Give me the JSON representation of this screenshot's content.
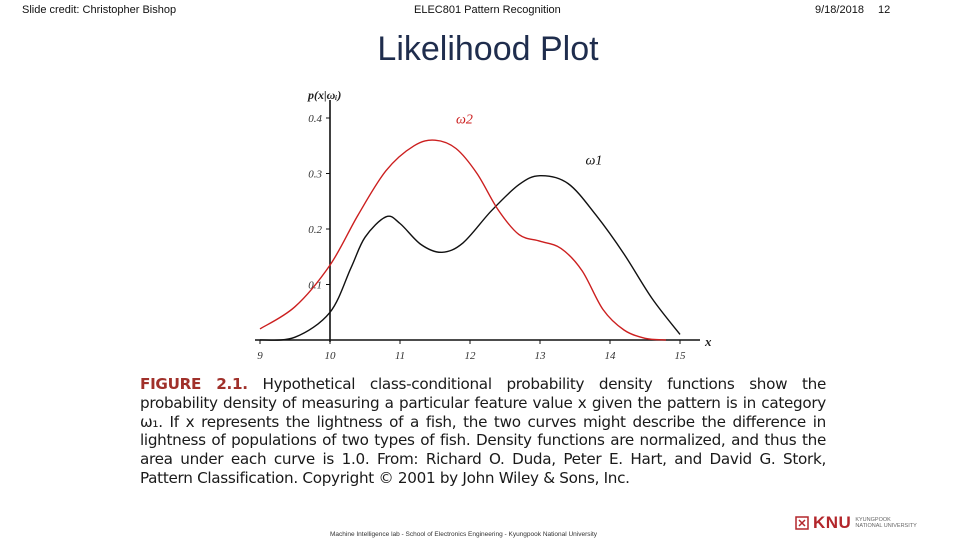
{
  "header": {
    "credit": "Slide credit: Christopher Bishop",
    "course": "ELEC801 Pattern Recognition",
    "date": "9/18/2018",
    "page": "12"
  },
  "title": "Likelihood Plot",
  "chart_data": {
    "type": "line",
    "ylabel": "p(x|ωᵢ)",
    "xlabel": "x",
    "xlim": [
      9,
      15
    ],
    "ylim": [
      0,
      0.4
    ],
    "x_ticks": [
      "9",
      "10",
      "11",
      "12",
      "13",
      "14",
      "15"
    ],
    "y_ticks": [
      "0.1",
      "0.2",
      "0.3",
      "0.4"
    ],
    "series": [
      {
        "name": "ω1",
        "color": "#111111",
        "points": [
          [
            9.0,
            0.0
          ],
          [
            9.5,
            0.005
          ],
          [
            10.0,
            0.05
          ],
          [
            10.3,
            0.13
          ],
          [
            10.5,
            0.185
          ],
          [
            10.8,
            0.222
          ],
          [
            11.0,
            0.21
          ],
          [
            11.3,
            0.172
          ],
          [
            11.6,
            0.158
          ],
          [
            11.9,
            0.175
          ],
          [
            12.3,
            0.232
          ],
          [
            12.7,
            0.28
          ],
          [
            13.0,
            0.296
          ],
          [
            13.4,
            0.282
          ],
          [
            13.8,
            0.225
          ],
          [
            14.2,
            0.155
          ],
          [
            14.6,
            0.075
          ],
          [
            15.0,
            0.01
          ]
        ]
      },
      {
        "name": "ω2",
        "color": "#cc1f1f",
        "points": [
          [
            9.0,
            0.02
          ],
          [
            9.5,
            0.06
          ],
          [
            10.0,
            0.135
          ],
          [
            10.4,
            0.225
          ],
          [
            10.8,
            0.305
          ],
          [
            11.2,
            0.35
          ],
          [
            11.5,
            0.36
          ],
          [
            11.8,
            0.345
          ],
          [
            12.1,
            0.3
          ],
          [
            12.4,
            0.235
          ],
          [
            12.7,
            0.19
          ],
          [
            13.0,
            0.178
          ],
          [
            13.3,
            0.165
          ],
          [
            13.6,
            0.125
          ],
          [
            13.9,
            0.055
          ],
          [
            14.2,
            0.018
          ],
          [
            14.5,
            0.003
          ],
          [
            14.8,
            0.0
          ]
        ]
      }
    ]
  },
  "caption": {
    "label": "FIGURE 2.1.",
    "text": " Hypothetical class-conditional probability density functions show the probability density of measuring a particular feature value x given the pattern is in category ω₁. If x represents the lightness of a fish, the two curves might describe the difference in lightness of populations of two types of fish. Density functions are normalized, and thus the area under each curve is 1.0. From: Richard O. Duda, Peter E. Hart, and David G. Stork, Pattern Classification. Copyright © 2001 by John Wiley & Sons, Inc."
  },
  "footer": "Machine Intelligence lab - School of Electronics Engineering - Kyungpook National University",
  "logo": {
    "name": "KNU",
    "line1": "KYUNGPOOK",
    "line2": "NATIONAL UNIVERSITY",
    "color": "#b3262b"
  }
}
